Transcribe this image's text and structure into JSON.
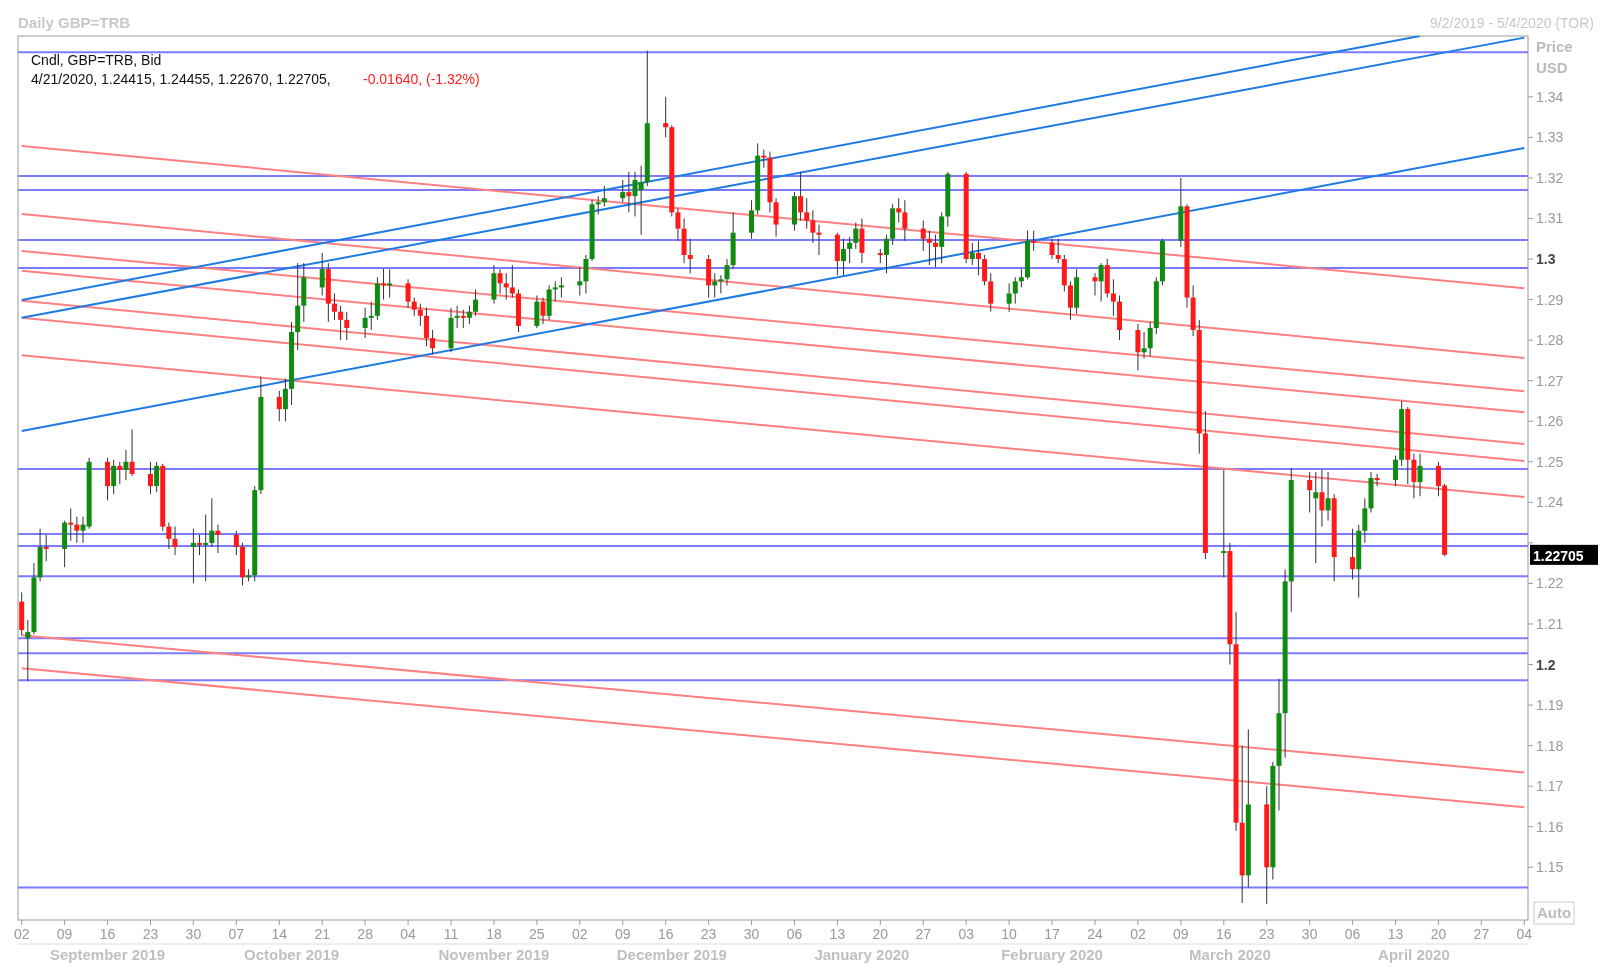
{
  "chart_data": {
    "type": "candlestick",
    "title": "Daily GBP=TRB",
    "subtitle": "9/2/2019 - 5/4/2020 (TOR)",
    "ylabel": "Price USD",
    "annotations": [
      "Cndl, GBP=TRB, Bid",
      "4/21/2020, 1.24415, 1.24455, 1.22670, 1.22705,",
      "-0.01640, (-1.32%)",
      "1.22705",
      "Auto"
    ],
    "xlim": [
      "2019-09-02",
      "2020-05-04"
    ],
    "xticks": [
      {
        "value": "2019-09-02",
        "label": "02"
      },
      {
        "value": "2019-09-09",
        "label": "09"
      },
      {
        "value": "2019-09-16",
        "label": "16"
      },
      {
        "value": "2019-09-23",
        "label": "23"
      },
      {
        "value": "2019-09-30",
        "label": "30"
      },
      {
        "value": "2019-10-07",
        "label": "07"
      },
      {
        "value": "2019-10-14",
        "label": "14"
      },
      {
        "value": "2019-10-21",
        "label": "21"
      },
      {
        "value": "2019-10-28",
        "label": "28"
      },
      {
        "value": "2019-11-04",
        "label": "04"
      },
      {
        "value": "2019-11-11",
        "label": "11"
      },
      {
        "value": "2019-11-18",
        "label": "18"
      },
      {
        "value": "2019-11-25",
        "label": "25"
      },
      {
        "value": "2019-12-02",
        "label": "02"
      },
      {
        "value": "2019-12-09",
        "label": "09"
      },
      {
        "value": "2019-12-16",
        "label": "16"
      },
      {
        "value": "2019-12-23",
        "label": "23"
      },
      {
        "value": "2019-12-30",
        "label": "30"
      },
      {
        "value": "2020-01-06",
        "label": "06"
      },
      {
        "value": "2020-01-13",
        "label": "13"
      },
      {
        "value": "2020-01-20",
        "label": "20"
      },
      {
        "value": "2020-01-27",
        "label": "27"
      },
      {
        "value": "2020-02-03",
        "label": "03"
      },
      {
        "value": "2020-02-10",
        "label": "10"
      },
      {
        "value": "2020-02-17",
        "label": "17"
      },
      {
        "value": "2020-02-24",
        "label": "24"
      },
      {
        "value": "2020-03-02",
        "label": "02"
      },
      {
        "value": "2020-03-09",
        "label": "09"
      },
      {
        "value": "2020-03-16",
        "label": "16"
      },
      {
        "value": "2020-03-23",
        "label": "23"
      },
      {
        "value": "2020-03-30",
        "label": "30"
      },
      {
        "value": "2020-04-06",
        "label": "06"
      },
      {
        "value": "2020-04-13",
        "label": "13"
      },
      {
        "value": "2020-04-20",
        "label": "20"
      },
      {
        "value": "2020-04-27",
        "label": "27"
      },
      {
        "value": "2020-05-04",
        "label": "04"
      }
    ],
    "x2lim": [
      "2019-09-02",
      "2020-05-04"
    ],
    "x2ticks": [
      {
        "value": "2019-09-16",
        "label": "September 2019"
      },
      {
        "value": "2019-10-16",
        "label": "October 2019"
      },
      {
        "value": "2019-11-18",
        "label": "November 2019"
      },
      {
        "value": "2019-12-17",
        "label": "December 2019"
      },
      {
        "value": "2020-01-17",
        "label": "January 2020"
      },
      {
        "value": "2020-02-17",
        "label": "February 2020"
      },
      {
        "value": "2020-03-17",
        "label": "March 2020"
      },
      {
        "value": "2020-04-16",
        "label": "April 2020"
      }
    ],
    "ylim": [
      1.137,
      1.355
    ],
    "yticks": [
      1.15,
      1.16,
      1.17,
      1.18,
      1.19,
      1.2,
      1.21,
      1.22,
      {
        "value": 1.23,
        "label": null
      },
      1.24,
      1.25,
      1.26,
      1.27,
      1.28,
      1.29,
      1.3,
      1.31,
      1.32,
      1.33,
      1.34
    ],
    "ref_lines": [
      {
        "axis": "y",
        "value": 1.351,
        "color": "#7b7bff"
      },
      {
        "axis": "y",
        "value": 1.3205,
        "color": "#7b7bff"
      },
      {
        "axis": "y",
        "value": 1.317,
        "color": "#7b7bff"
      },
      {
        "axis": "y",
        "value": 1.3047,
        "color": "#7b7bff"
      },
      {
        "axis": "y",
        "value": 1.2978,
        "color": "#7b7bff"
      },
      {
        "axis": "y",
        "value": 1.2482,
        "color": "#7b7bff"
      },
      {
        "axis": "y",
        "value": 1.2322,
        "color": "#7b7bff"
      },
      {
        "axis": "y",
        "value": 1.2292,
        "color": "#7b7bff"
      },
      {
        "axis": "y",
        "value": 1.2218,
        "color": "#7b7bff"
      },
      {
        "axis": "y",
        "value": 1.2065,
        "color": "#7b7bff"
      },
      {
        "axis": "y",
        "value": 1.2028,
        "color": "#7b7bff"
      },
      {
        "axis": "y",
        "value": 1.1961,
        "color": "#7b7bff"
      },
      {
        "axis": "y",
        "value": 1.145,
        "color": "#7b7bff"
      }
    ],
    "series": [
      {
        "type": "line",
        "color": "#ff8080",
        "x": [
          "2019-09-02",
          "2020-05-04"
        ],
        "values": [
          1.3279,
          1.2928
        ]
      },
      {
        "type": "line",
        "color": "#ff8080",
        "x": [
          "2019-09-02",
          "2020-05-04"
        ],
        "values": [
          1.3111,
          1.2756
        ]
      },
      {
        "type": "line",
        "color": "#ff8080",
        "x": [
          "2019-09-02",
          "2020-05-04"
        ],
        "values": [
          1.302,
          1.2674
        ]
      },
      {
        "type": "line",
        "color": "#ff8080",
        "x": [
          "2019-09-02",
          "2020-05-04"
        ],
        "values": [
          1.2971,
          1.2622
        ]
      },
      {
        "type": "line",
        "color": "#ff8080",
        "x": [
          "2019-09-02",
          "2020-05-04"
        ],
        "values": [
          1.2897,
          1.2544
        ]
      },
      {
        "type": "line",
        "color": "#ff8080",
        "x": [
          "2019-09-02",
          "2020-05-04"
        ],
        "values": [
          1.2855,
          1.2502
        ]
      },
      {
        "type": "line",
        "color": "#ff8080",
        "x": [
          "2019-09-02",
          "2020-05-04"
        ],
        "values": [
          1.2763,
          1.2413
        ]
      },
      {
        "type": "line",
        "color": "#ff8080",
        "x": [
          "2019-09-02",
          "2020-05-04"
        ],
        "values": [
          1.2072,
          1.1734
        ]
      },
      {
        "type": "line",
        "color": "#ff8080",
        "x": [
          "2019-09-02",
          "2020-05-04"
        ],
        "values": [
          1.1991,
          1.1648
        ]
      },
      {
        "type": "line",
        "color": "#1e7be6",
        "x": [
          "2019-09-02",
          "2020-04-17"
        ],
        "values": [
          1.2899,
          1.355
        ]
      },
      {
        "type": "line",
        "color": "#1e7be6",
        "x": [
          "2019-09-02",
          "2020-05-04"
        ],
        "values": [
          1.2855,
          1.3546
        ]
      },
      {
        "type": "line",
        "color": "#1e7be6",
        "x": [
          "2019-09-02",
          "2020-05-04"
        ],
        "values": [
          1.2576,
          1.3274
        ]
      }
    ],
    "x": [
      "2019-09-02",
      "2019-09-03",
      "2019-09-04",
      "2019-09-05",
      "2019-09-06",
      "2019-09-09",
      "2019-09-10",
      "2019-09-11",
      "2019-09-12",
      "2019-09-13",
      "2019-09-16",
      "2019-09-17",
      "2019-09-18",
      "2019-09-19",
      "2019-09-20",
      "2019-09-23",
      "2019-09-24",
      "2019-09-25",
      "2019-09-26",
      "2019-09-27",
      "2019-09-30",
      "2019-10-01",
      "2019-10-02",
      "2019-10-03",
      "2019-10-04",
      "2019-10-07",
      "2019-10-08",
      "2019-10-09",
      "2019-10-10",
      "2019-10-11",
      "2019-10-14",
      "2019-10-15",
      "2019-10-16",
      "2019-10-17",
      "2019-10-18",
      "2019-10-21",
      "2019-10-22",
      "2019-10-23",
      "2019-10-24",
      "2019-10-25",
      "2019-10-28",
      "2019-10-29",
      "2019-10-30",
      "2019-10-31",
      "2019-11-01",
      "2019-11-04",
      "2019-11-05",
      "2019-11-06",
      "2019-11-07",
      "2019-11-08",
      "2019-11-11",
      "2019-11-12",
      "2019-11-13",
      "2019-11-14",
      "2019-11-15",
      "2019-11-18",
      "2019-11-19",
      "2019-11-20",
      "2019-11-21",
      "2019-11-22",
      "2019-11-25",
      "2019-11-26",
      "2019-11-27",
      "2019-11-28",
      "2019-11-29",
      "2019-12-02",
      "2019-12-03",
      "2019-12-04",
      "2019-12-05",
      "2019-12-06",
      "2019-12-09",
      "2019-12-10",
      "2019-12-11",
      "2019-12-12",
      "2019-12-13",
      "2019-12-16",
      "2019-12-17",
      "2019-12-18",
      "2019-12-19",
      "2019-12-20",
      "2019-12-23",
      "2019-12-24",
      "2019-12-25",
      "2019-12-26",
      "2019-12-27",
      "2019-12-30",
      "2019-12-31",
      "2020-01-01",
      "2020-01-02",
      "2020-01-03",
      "2020-01-06",
      "2020-01-07",
      "2020-01-08",
      "2020-01-09",
      "2020-01-10",
      "2020-01-13",
      "2020-01-14",
      "2020-01-15",
      "2020-01-16",
      "2020-01-17",
      "2020-01-20",
      "2020-01-21",
      "2020-01-22",
      "2020-01-23",
      "2020-01-24",
      "2020-01-27",
      "2020-01-28",
      "2020-01-29",
      "2020-01-30",
      "2020-01-31",
      "2020-02-03",
      "2020-02-04",
      "2020-02-05",
      "2020-02-06",
      "2020-02-07",
      "2020-02-10",
      "2020-02-11",
      "2020-02-12",
      "2020-02-13",
      "2020-02-14",
      "2020-02-17",
      "2020-02-18",
      "2020-02-19",
      "2020-02-20",
      "2020-02-21",
      "2020-02-24",
      "2020-02-25",
      "2020-02-26",
      "2020-02-27",
      "2020-02-28",
      "2020-03-02",
      "2020-03-03",
      "2020-03-04",
      "2020-03-05",
      "2020-03-06",
      "2020-03-09",
      "2020-03-10",
      "2020-03-11",
      "2020-03-12",
      "2020-03-13",
      "2020-03-16",
      "2020-03-17",
      "2020-03-18",
      "2020-03-19",
      "2020-03-20",
      "2020-03-23",
      "2020-03-24",
      "2020-03-25",
      "2020-03-26",
      "2020-03-27",
      "2020-03-30",
      "2020-03-31",
      "2020-04-01",
      "2020-04-02",
      "2020-04-03",
      "2020-04-06",
      "2020-04-07",
      "2020-04-08",
      "2020-04-09",
      "2020-04-10",
      "2020-04-13",
      "2020-04-14",
      "2020-04-15",
      "2020-04-16",
      "2020-04-17",
      "2020-04-20",
      "2020-04-21"
    ],
    "ohlc": [
      [
        1.2155,
        1.2178,
        1.2072,
        1.2085
      ],
      [
        1.2065,
        1.211,
        1.1959,
        1.208
      ],
      [
        1.208,
        1.225,
        1.2075,
        1.2215
      ],
      [
        1.2215,
        1.2335,
        1.2205,
        1.229
      ],
      [
        1.229,
        1.232,
        1.2255,
        1.2285
      ],
      [
        1.2285,
        1.2355,
        1.224,
        1.235
      ],
      [
        1.235,
        1.2385,
        1.2305,
        1.2345
      ],
      [
        1.2345,
        1.2365,
        1.23,
        1.233
      ],
      [
        1.233,
        1.2365,
        1.23,
        1.2345
      ],
      [
        1.234,
        1.251,
        1.2335,
        1.25
      ],
      [
        1.25,
        1.251,
        1.2405,
        1.244
      ],
      [
        1.244,
        1.2505,
        1.242,
        1.249
      ],
      [
        1.249,
        1.25,
        1.2445,
        1.248
      ],
      [
        1.248,
        1.253,
        1.2455,
        1.25
      ],
      [
        1.25,
        1.258,
        1.2465,
        1.247
      ],
      [
        1.247,
        1.25,
        1.242,
        1.244
      ],
      [
        1.244,
        1.25,
        1.2425,
        1.249
      ],
      [
        1.249,
        1.2495,
        1.233,
        1.234
      ],
      [
        1.234,
        1.235,
        1.2285,
        1.231
      ],
      [
        1.231,
        1.234,
        1.227,
        1.229
      ],
      [
        1.229,
        1.2335,
        1.22,
        1.23
      ],
      [
        1.23,
        1.232,
        1.227,
        1.2295
      ],
      [
        1.2295,
        1.237,
        1.2205,
        1.23
      ],
      [
        1.23,
        1.241,
        1.229,
        1.233
      ],
      [
        1.233,
        1.2345,
        1.2275,
        1.232
      ],
      [
        1.232,
        1.233,
        1.227,
        1.229
      ],
      [
        1.229,
        1.23,
        1.2195,
        1.2215
      ],
      [
        1.2215,
        1.2235,
        1.2205,
        1.222
      ],
      [
        1.222,
        1.244,
        1.2205,
        1.243
      ],
      [
        1.243,
        1.271,
        1.242,
        1.266
      ],
      [
        1.266,
        1.2675,
        1.26,
        1.263
      ],
      [
        1.263,
        1.2705,
        1.26,
        1.268
      ],
      [
        1.268,
        1.2845,
        1.264,
        1.282
      ],
      [
        1.282,
        1.299,
        1.2775,
        1.2885
      ],
      [
        1.2885,
        1.299,
        1.2845,
        1.2955
      ],
      [
        1.293,
        1.3015,
        1.291,
        1.2975
      ],
      [
        1.2975,
        1.299,
        1.2845,
        1.289
      ],
      [
        1.289,
        1.2915,
        1.285,
        1.287
      ],
      [
        1.287,
        1.2885,
        1.28,
        1.285
      ],
      [
        1.285,
        1.287,
        1.28,
        1.283
      ],
      [
        1.283,
        1.288,
        1.2805,
        1.2855
      ],
      [
        1.2855,
        1.2895,
        1.2825,
        1.286
      ],
      [
        1.286,
        1.2955,
        1.285,
        1.294
      ],
      [
        1.294,
        1.2976,
        1.29,
        1.2935
      ],
      [
        1.2935,
        1.2975,
        1.2905,
        1.294
      ],
      [
        1.294,
        1.295,
        1.288,
        1.2895
      ],
      [
        1.2895,
        1.2905,
        1.286,
        1.2875
      ],
      [
        1.2875,
        1.289,
        1.2835,
        1.286
      ],
      [
        1.286,
        1.288,
        1.2785,
        1.2805
      ],
      [
        1.2805,
        1.2825,
        1.2765,
        1.278
      ],
      [
        1.278,
        1.288,
        1.277,
        1.2855
      ],
      [
        1.2855,
        1.2885,
        1.283,
        1.286
      ],
      [
        1.286,
        1.2875,
        1.283,
        1.2855
      ],
      [
        1.2855,
        1.2885,
        1.284,
        1.287
      ],
      [
        1.287,
        1.2925,
        1.286,
        1.29
      ],
      [
        1.29,
        1.2985,
        1.289,
        1.2965
      ],
      [
        1.2965,
        1.2975,
        1.2915,
        1.294
      ],
      [
        1.294,
        1.2965,
        1.29,
        1.293
      ],
      [
        1.293,
        1.2985,
        1.2905,
        1.2915
      ],
      [
        1.2915,
        1.2925,
        1.282,
        1.2835
      ],
      [
        1.2835,
        1.291,
        1.283,
        1.2895
      ],
      [
        1.2895,
        1.2905,
        1.284,
        1.286
      ],
      [
        1.286,
        1.2935,
        1.285,
        1.2925
      ],
      [
        1.2925,
        1.2945,
        1.2895,
        1.293
      ],
      [
        1.293,
        1.2955,
        1.2905,
        1.2935
      ],
      [
        1.2935,
        1.298,
        1.291,
        1.2945
      ],
      [
        1.2945,
        1.301,
        1.2915,
        1.3
      ],
      [
        1.3,
        1.3145,
        1.2995,
        1.3135
      ],
      [
        1.3135,
        1.3155,
        1.311,
        1.314
      ],
      [
        1.314,
        1.318,
        1.313,
        1.315
      ],
      [
        1.315,
        1.3195,
        1.314,
        1.3165
      ],
      [
        1.3165,
        1.3215,
        1.3115,
        1.3155
      ],
      [
        1.3155,
        1.3215,
        1.3105,
        1.3195
      ],
      [
        1.317,
        1.323,
        1.306,
        1.319
      ],
      [
        1.319,
        1.3514,
        1.318,
        1.3335
      ],
      [
        1.3335,
        1.34,
        1.33,
        1.3325
      ],
      [
        1.3325,
        1.333,
        1.3105,
        1.3115
      ],
      [
        1.3115,
        1.3125,
        1.3045,
        1.3075
      ],
      [
        1.3075,
        1.31,
        1.299,
        1.301
      ],
      [
        1.301,
        1.305,
        1.2965,
        1.3
      ],
      [
        1.3,
        1.301,
        1.2905,
        1.2935
      ],
      [
        1.2935,
        1.2965,
        1.2905,
        1.2945
      ],
      [
        1.2945,
        1.296,
        1.2915,
        1.295
      ],
      [
        1.295,
        1.3,
        1.2935,
        1.2985
      ],
      [
        1.2985,
        1.3115,
        1.2975,
        1.3065
      ],
      [
        1.3065,
        1.3145,
        1.305,
        1.312
      ],
      [
        1.312,
        1.3285,
        1.311,
        1.3255
      ],
      [
        1.3255,
        1.327,
        1.3225,
        1.325
      ],
      [
        1.325,
        1.3265,
        1.3115,
        1.314
      ],
      [
        1.314,
        1.315,
        1.3055,
        1.3085
      ],
      [
        1.3085,
        1.3165,
        1.307,
        1.3155
      ],
      [
        1.3155,
        1.3215,
        1.3095,
        1.3115
      ],
      [
        1.3115,
        1.315,
        1.3075,
        1.3095
      ],
      [
        1.3095,
        1.312,
        1.304,
        1.3065
      ],
      [
        1.3065,
        1.3085,
        1.301,
        1.306
      ],
      [
        1.306,
        1.3065,
        1.296,
        1.2995
      ],
      [
        1.2995,
        1.305,
        1.296,
        1.3025
      ],
      [
        1.3025,
        1.3055,
        1.299,
        1.304
      ],
      [
        1.304,
        1.309,
        1.3025,
        1.3075
      ],
      [
        1.3075,
        1.31,
        1.299,
        1.3015
      ],
      [
        1.3015,
        1.3025,
        1.299,
        1.301
      ],
      [
        1.301,
        1.306,
        1.2965,
        1.305
      ],
      [
        1.305,
        1.3135,
        1.3035,
        1.3125
      ],
      [
        1.3125,
        1.315,
        1.309,
        1.3115
      ],
      [
        1.3115,
        1.3145,
        1.3045,
        1.3075
      ],
      [
        1.3075,
        1.3095,
        1.302,
        1.305
      ],
      [
        1.305,
        1.307,
        1.2985,
        1.304
      ],
      [
        1.304,
        1.306,
        1.298,
        1.303
      ],
      [
        1.303,
        1.3115,
        1.299,
        1.3105
      ],
      [
        1.3105,
        1.3215,
        1.308,
        1.321
      ],
      [
        1.321,
        1.3215,
        1.299,
        1.3
      ],
      [
        1.3,
        1.304,
        1.2985,
        1.3015
      ],
      [
        1.3015,
        1.3045,
        1.296,
        1.3
      ],
      [
        1.3,
        1.301,
        1.2935,
        1.2945
      ],
      [
        1.2945,
        1.2965,
        1.287,
        1.289
      ],
      [
        1.289,
        1.294,
        1.287,
        1.2915
      ],
      [
        1.2915,
        1.2955,
        1.289,
        1.2945
      ],
      [
        1.2945,
        1.2975,
        1.293,
        1.2955
      ],
      [
        1.2955,
        1.307,
        1.295,
        1.3045
      ],
      [
        1.3045,
        1.307,
        1.302,
        1.304
      ],
      [
        1.304,
        1.305,
        1.3,
        1.301
      ],
      [
        1.301,
        1.305,
        1.299,
        1.3
      ],
      [
        1.3,
        1.301,
        1.292,
        1.2935
      ],
      [
        1.2935,
        1.2945,
        1.285,
        1.288
      ],
      [
        1.288,
        1.2975,
        1.2865,
        1.2955
      ],
      [
        1.2955,
        1.2965,
        1.291,
        1.2945
      ],
      [
        1.2945,
        1.299,
        1.2895,
        1.2985
      ],
      [
        1.2985,
        1.3,
        1.2905,
        1.2915
      ],
      [
        1.2915,
        1.295,
        1.286,
        1.2895
      ],
      [
        1.2895,
        1.291,
        1.28,
        1.2825
      ],
      [
        1.2825,
        1.284,
        1.2725,
        1.277
      ],
      [
        1.277,
        1.282,
        1.2755,
        1.278
      ],
      [
        1.278,
        1.2845,
        1.276,
        1.283
      ],
      [
        1.283,
        1.2955,
        1.2815,
        1.2945
      ],
      [
        1.2945,
        1.305,
        1.2935,
        1.3045
      ],
      [
        1.3045,
        1.32,
        1.303,
        1.313
      ],
      [
        1.313,
        1.3135,
        1.288,
        1.2905
      ],
      [
        1.2905,
        1.2935,
        1.281,
        1.2825
      ],
      [
        1.2825,
        1.285,
        1.252,
        1.257
      ],
      [
        1.257,
        1.2625,
        1.226,
        1.2275
      ],
      [
        1.2275,
        1.248,
        1.2215,
        1.228
      ],
      [
        1.228,
        1.23,
        1.2,
        1.205
      ],
      [
        1.205,
        1.213,
        1.159,
        1.161
      ],
      [
        1.161,
        1.18,
        1.1412,
        1.148
      ],
      [
        1.148,
        1.184,
        1.145,
        1.1655
      ],
      [
        1.1655,
        1.17,
        1.141,
        1.15
      ],
      [
        1.15,
        1.176,
        1.147,
        1.175
      ],
      [
        1.175,
        1.1965,
        1.164,
        1.188
      ],
      [
        1.188,
        1.2235,
        1.177,
        1.2205
      ],
      [
        1.2205,
        1.2485,
        1.213,
        1.2455
      ],
      [
        1.2455,
        1.2475,
        1.2375,
        1.243
      ],
      [
        1.241,
        1.2475,
        1.225,
        1.2425
      ],
      [
        1.2425,
        1.248,
        1.234,
        1.238
      ],
      [
        1.238,
        1.2475,
        1.2355,
        1.241
      ],
      [
        1.241,
        1.242,
        1.2205,
        1.2265
      ],
      [
        1.2265,
        1.2335,
        1.221,
        1.2235
      ],
      [
        1.2235,
        1.2345,
        1.2165,
        1.233
      ],
      [
        1.233,
        1.241,
        1.23,
        1.2385
      ],
      [
        1.2385,
        1.2475,
        1.2375,
        1.246
      ],
      [
        1.246,
        1.247,
        1.244,
        1.2455
      ],
      [
        1.2455,
        1.2515,
        1.244,
        1.2505
      ],
      [
        1.2505,
        1.265,
        1.249,
        1.263
      ],
      [
        1.263,
        1.2635,
        1.2445,
        1.2505
      ],
      [
        1.2505,
        1.252,
        1.241,
        1.245
      ],
      [
        1.245,
        1.252,
        1.2415,
        1.249
      ],
      [
        1.249,
        1.25,
        1.2415,
        1.244
      ],
      [
        1.24415,
        1.24455,
        1.2267,
        1.22705
      ]
    ]
  }
}
